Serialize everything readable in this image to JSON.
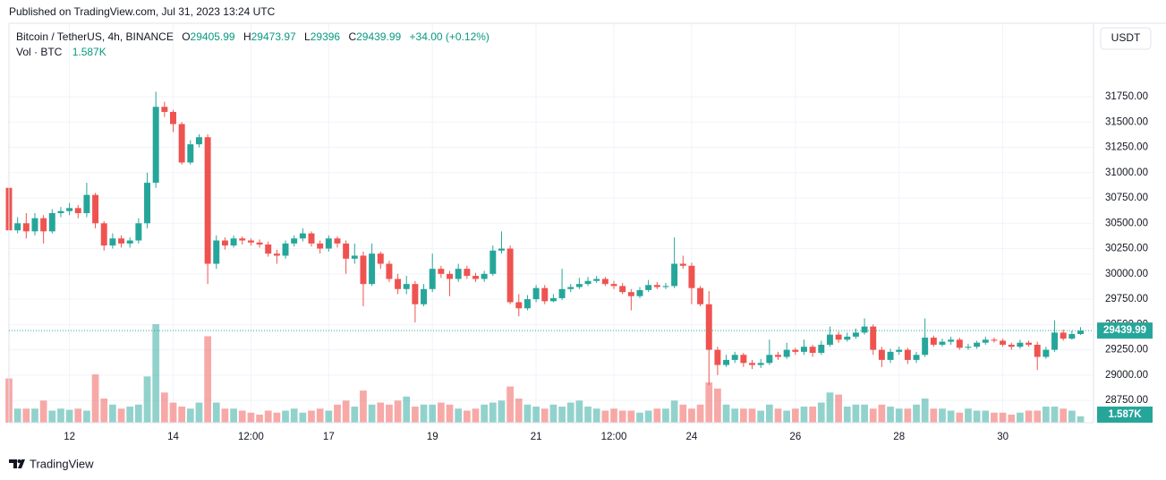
{
  "header": {
    "published": "Published on TradingView.com, Jul 31, 2023 13:24 UTC"
  },
  "footer": {
    "brand": "TradingView"
  },
  "chart_data": {
    "type": "candlestick",
    "title": "Bitcoin / TetherUS, 4h, BINANCE",
    "currency": "USDT",
    "ohlc_labels": [
      "O",
      "H",
      "L",
      "C"
    ],
    "change_label": "+34.00 (+0.12%)",
    "up_color": "#26a69a",
    "down_color": "#ef5350",
    "grid": true,
    "ylim": [
      28530,
      32440
    ],
    "yticks": [
      {
        "value": 28750,
        "label": "28750.00"
      },
      {
        "value": 29000,
        "label": "29000.00"
      },
      {
        "value": 29250,
        "label": "29250.00"
      },
      {
        "value": 29500,
        "label": "29500.00"
      },
      {
        "value": 29750,
        "label": "29750.00"
      },
      {
        "value": 30000,
        "label": "30000.00"
      },
      {
        "value": 30250,
        "label": "30250.00"
      },
      {
        "value": 30500,
        "label": "30500.00"
      },
      {
        "value": 30750,
        "label": "30750.00"
      },
      {
        "value": 31000,
        "label": "31000.00"
      },
      {
        "value": 31250,
        "label": "31250.00"
      },
      {
        "value": 31500,
        "label": "31500.00"
      },
      {
        "value": 31750,
        "label": "31750.00"
      }
    ],
    "xlim": [
      0,
      125.5
    ],
    "xticks": [
      {
        "value": 7,
        "label": "12"
      },
      {
        "value": 19,
        "label": "14"
      },
      {
        "value": 28,
        "label": "12:00"
      },
      {
        "value": 37,
        "label": "17"
      },
      {
        "value": 49,
        "label": "19"
      },
      {
        "value": 61,
        "label": "21"
      },
      {
        "value": 70,
        "label": "12:00"
      },
      {
        "value": 79,
        "label": "24"
      },
      {
        "value": 91,
        "label": "26"
      },
      {
        "value": 103,
        "label": "28"
      },
      {
        "value": 115,
        "label": "30"
      }
    ],
    "open": [
      30850,
      30430,
      30500,
      30420,
      30550,
      30420,
      30600,
      30620,
      30650,
      30600,
      30780,
      30500,
      30280,
      30350,
      30300,
      30330,
      30500,
      30900,
      31650,
      31600,
      31480,
      31100,
      31280,
      31350,
      30100,
      30330,
      30280,
      30350,
      30330,
      30310,
      30290,
      30200,
      30180,
      30300,
      30350,
      30400,
      30300,
      30250,
      30350,
      30300,
      30150,
      30180,
      29900,
      30200,
      30100,
      29950,
      29850,
      29900,
      29700,
      29850,
      30050,
      30000,
      29950,
      30050,
      29980,
      29950,
      30000,
      30230,
      30250,
      29720,
      29660,
      29750,
      29860,
      29730,
      29760,
      29850,
      29870,
      29900,
      29930,
      29950,
      29900,
      29880,
      29820,
      29780,
      29840,
      29890,
      29870,
      29880,
      30100,
      30080,
      29860,
      29700,
      29250,
      29100,
      29150,
      29200,
      29120,
      29100,
      29120,
      29200,
      29180,
      29250,
      29230,
      29280,
      29220,
      29300,
      29400,
      29350,
      29380,
      29420,
      29480,
      29250,
      29150,
      29230,
      29250,
      29150,
      29200,
      29370,
      29300,
      29330,
      29350,
      29270,
      29280,
      29320,
      29350,
      29340,
      29300,
      29280,
      29320,
      29300,
      29180,
      29250,
      29420,
      29360,
      29405.99
    ],
    "high": [
      30860,
      30560,
      30600,
      30600,
      30580,
      30640,
      30660,
      30700,
      30680,
      30900,
      30800,
      30520,
      30400,
      30380,
      30360,
      30550,
      31000,
      31800,
      31700,
      31620,
      31500,
      31320,
      31380,
      31380,
      30380,
      30360,
      30380,
      30370,
      30350,
      30340,
      30320,
      30240,
      30330,
      30380,
      30450,
      30420,
      30330,
      30380,
      30370,
      30330,
      30300,
      30220,
      30300,
      30220,
      30130,
      30000,
      29980,
      29930,
      29900,
      30200,
      30080,
      30030,
      30100,
      30080,
      30010,
      30030,
      30280,
      30420,
      30280,
      29800,
      29790,
      29890,
      29890,
      29800,
      30050,
      29900,
      29960,
      29970,
      29980,
      29970,
      29930,
      29910,
      29850,
      29870,
      29940,
      29920,
      29910,
      30360,
      30180,
      30110,
      29880,
      29830,
      29280,
      29200,
      29230,
      29220,
      29150,
      29160,
      29350,
      29230,
      29320,
      29270,
      29350,
      29300,
      29340,
      29480,
      29430,
      29420,
      29460,
      29560,
      29500,
      29280,
      29260,
      29280,
      29270,
      29230,
      29560,
      29390,
      29360,
      29380,
      29370,
      29310,
      29340,
      29380,
      29370,
      29360,
      29320,
      29350,
      29340,
      29330,
      29280,
      29540,
      29450,
      29440,
      29473.97
    ],
    "low": [
      30380,
      30400,
      30350,
      30380,
      30300,
      30400,
      30560,
      30580,
      30550,
      30560,
      30450,
      30230,
      30250,
      30260,
      30260,
      30300,
      30450,
      30850,
      31550,
      31400,
      31080,
      31080,
      31250,
      29900,
      30050,
      30240,
      30260,
      30290,
      30280,
      30260,
      30170,
      30100,
      30150,
      30270,
      30320,
      30270,
      30200,
      30220,
      30260,
      30000,
      30100,
      29680,
      29880,
      30050,
      29920,
      29800,
      29800,
      29520,
      29680,
      29820,
      29960,
      29780,
      29920,
      29950,
      29920,
      29920,
      29980,
      30200,
      29700,
      29580,
      29640,
      29720,
      29700,
      29720,
      29740,
      29820,
      29850,
      29880,
      29910,
      29880,
      29850,
      29800,
      29640,
      29760,
      29820,
      29850,
      29850,
      29860,
      30050,
      29700,
      29680,
      28900,
      29000,
      29080,
      29120,
      29080,
      29060,
      29070,
      29100,
      29150,
      29160,
      29200,
      29200,
      29180,
      29200,
      29280,
      29320,
      29330,
      29360,
      29400,
      29200,
      29080,
      29120,
      29200,
      29110,
      29120,
      29180,
      29280,
      29280,
      29300,
      29250,
      29250,
      29260,
      29300,
      29320,
      29280,
      29250,
      29260,
      29280,
      29050,
      29160,
      29230,
      29340,
      29350,
      29396
    ],
    "close": [
      30430,
      30500,
      30420,
      30550,
      30420,
      30600,
      30620,
      30650,
      30600,
      30780,
      30500,
      30280,
      30350,
      30300,
      30330,
      30500,
      30900,
      31650,
      31600,
      31480,
      31100,
      31280,
      31350,
      30100,
      30330,
      30280,
      30350,
      30330,
      30310,
      30290,
      30200,
      30180,
      30300,
      30350,
      30400,
      30300,
      30250,
      30350,
      30300,
      30150,
      30180,
      29900,
      30200,
      30100,
      29950,
      29850,
      29900,
      29700,
      29850,
      30050,
      30000,
      29950,
      30050,
      29980,
      29950,
      30000,
      30230,
      30250,
      29720,
      29660,
      29750,
      29860,
      29730,
      29760,
      29850,
      29870,
      29900,
      29930,
      29950,
      29900,
      29880,
      29820,
      29780,
      29840,
      29890,
      29870,
      29880,
      30100,
      30080,
      29860,
      29700,
      29250,
      29100,
      29150,
      29200,
      29120,
      29100,
      29120,
      29200,
      29180,
      29250,
      29230,
      29280,
      29220,
      29300,
      29400,
      29350,
      29380,
      29420,
      29480,
      29250,
      29150,
      29230,
      29250,
      29150,
      29200,
      29370,
      29300,
      29330,
      29350,
      29270,
      29280,
      29320,
      29350,
      29340,
      29300,
      29280,
      29320,
      29300,
      29180,
      29250,
      29420,
      29360,
      29405.99,
      29439.99
    ],
    "volume": {
      "name": "Vol · BTC",
      "last_label": "1.587K",
      "values": [
        11000,
        3500,
        3500,
        3500,
        5500,
        3000,
        3500,
        3200,
        3500,
        3000,
        12000,
        6000,
        4500,
        3500,
        4000,
        4500,
        11500,
        24500,
        7500,
        5000,
        4000,
        3500,
        5000,
        21500,
        5000,
        3500,
        3500,
        3000,
        2500,
        2000,
        3000,
        2500,
        3000,
        3500,
        2500,
        3000,
        3500,
        3000,
        4500,
        5500,
        4000,
        8000,
        4500,
        5000,
        4500,
        5500,
        6500,
        4000,
        4500,
        4500,
        5000,
        4500,
        3500,
        3000,
        3500,
        4500,
        5000,
        5500,
        9000,
        6000,
        4500,
        4000,
        3500,
        4500,
        4000,
        5000,
        5500,
        4000,
        3500,
        3000,
        3500,
        3000,
        3000,
        2500,
        3000,
        3500,
        3500,
        5500,
        4500,
        3500,
        4500,
        10000,
        8500,
        4500,
        3500,
        3500,
        3500,
        3000,
        4500,
        3500,
        3000,
        3500,
        4000,
        4000,
        5000,
        7500,
        7000,
        4000,
        4500,
        4500,
        3500,
        4500,
        4000,
        3500,
        3500,
        4500,
        6000,
        3500,
        3500,
        3000,
        2500,
        3500,
        3000,
        3000,
        2500,
        2500,
        2000,
        2500,
        3000,
        3000,
        4000,
        4000,
        3500,
        3000,
        1587
      ]
    }
  }
}
